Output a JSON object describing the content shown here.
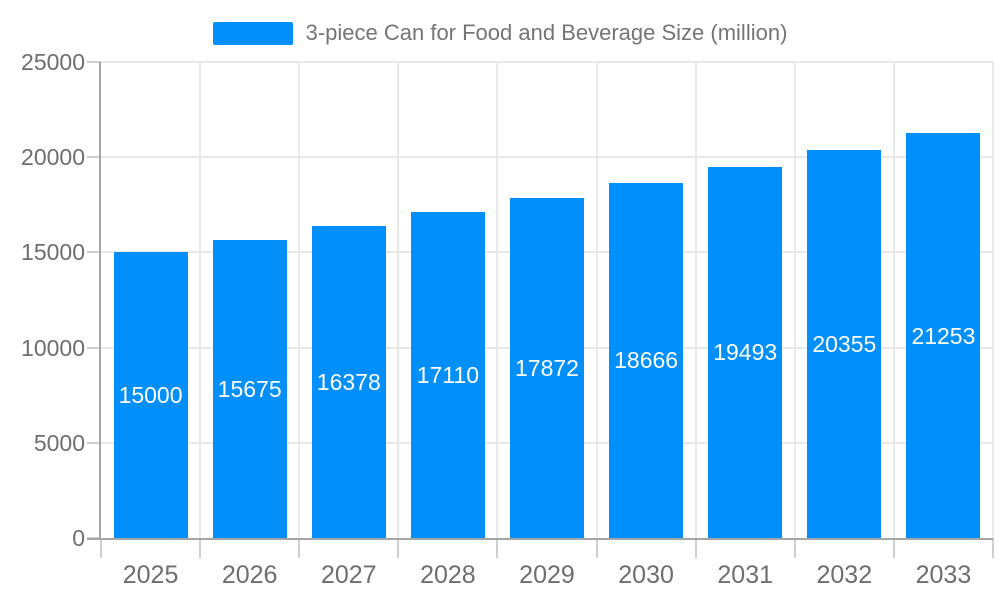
{
  "legend": {
    "label": "3-piece Can for Food and Beverage Size (million)"
  },
  "colors": {
    "bar": "#008ffb",
    "legend_text": "#757575",
    "axis_label": "#6e6e6e",
    "value_label": "#ffffff",
    "axis_line": "#a6a6a6",
    "grid_line": "#e9e9e9",
    "tick_line": "#cfcfcf",
    "background": "#ffffff"
  },
  "chart_data": {
    "type": "bar",
    "title": "3-piece Can for Food and Beverage Size (million)",
    "categories": [
      "2025",
      "2026",
      "2027",
      "2028",
      "2029",
      "2030",
      "2031",
      "2032",
      "2033"
    ],
    "values": [
      15000,
      15675,
      16378,
      17110,
      17872,
      18666,
      19493,
      20355,
      21253
    ],
    "xlabel": "",
    "ylabel": "",
    "ylim": [
      0,
      25000
    ],
    "y_ticks": [
      0,
      5000,
      10000,
      15000,
      20000,
      25000
    ],
    "grid": true,
    "legend_position": "top",
    "value_labels": "inside-center-white"
  }
}
